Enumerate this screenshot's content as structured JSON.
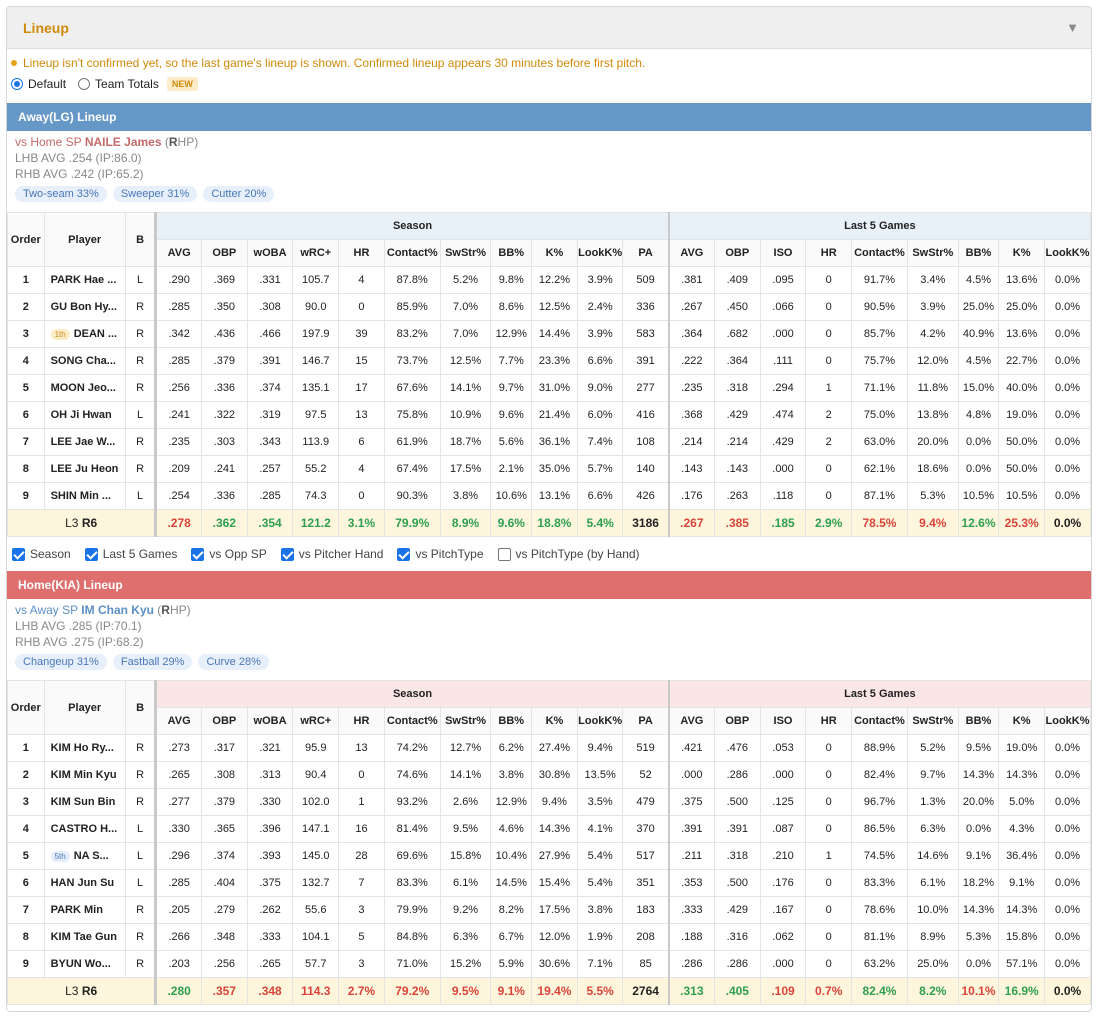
{
  "panel": {
    "title": "Lineup",
    "caret": "▼"
  },
  "notice": "Lineup isn't confirmed yet, so the last game's lineup is shown. Confirmed lineup appears 30 minutes before first pitch.",
  "view_options": [
    {
      "label": "Default",
      "selected": true
    },
    {
      "label": "Team Totals",
      "selected": false,
      "badge": "NEW"
    }
  ],
  "headers": {
    "order": "Order",
    "player": "Player",
    "b": "B",
    "season": "Season",
    "last5": "Last 5 Games",
    "season_cols": [
      "AVG",
      "OBP",
      "wOBA",
      "wRC+",
      "HR",
      "Contact%",
      "SwStr%",
      "BB%",
      "K%",
      "LookK%",
      "PA"
    ],
    "last5_cols": [
      "AVG",
      "OBP",
      "ISO",
      "HR",
      "Contact%",
      "SwStr%",
      "BB%",
      "K%",
      "LookK%"
    ]
  },
  "away": {
    "title": "Away(LG) Lineup",
    "sp_prefix": "vs Home SP",
    "sp_name": "NAILE James",
    "sp_hand_open": "(",
    "sp_hand_letter": "R",
    "sp_hand_rest": "HP)",
    "lhb": "LHB AVG .254 (IP:86.0)",
    "rhb": "RHB AVG .242 (IP:65.2)",
    "pitches": [
      "Two-seam 33%",
      "Sweeper 31%",
      "Cutter 20%"
    ],
    "rows": [
      {
        "order": "1",
        "badge": "",
        "player": "PARK Hae ...",
        "b": "L",
        "season": [
          ".290",
          ".369",
          ".331",
          "105.7",
          "4",
          "87.8%",
          "5.2%",
          "9.8%",
          "12.2%",
          "3.9%",
          "509"
        ],
        "last5": [
          ".381",
          ".409",
          ".095",
          "0",
          "91.7%",
          "3.4%",
          "4.5%",
          "13.6%",
          "0.0%"
        ]
      },
      {
        "order": "2",
        "badge": "",
        "player": "GU Bon Hy...",
        "b": "R",
        "season": [
          ".285",
          ".350",
          ".308",
          "90.0",
          "0",
          "85.9%",
          "7.0%",
          "8.6%",
          "12.5%",
          "2.4%",
          "336"
        ],
        "last5": [
          ".267",
          ".450",
          ".066",
          "0",
          "90.5%",
          "3.9%",
          "25.0%",
          "25.0%",
          "0.0%"
        ]
      },
      {
        "order": "3",
        "badge": "1th",
        "player": "DEAN ...",
        "b": "R",
        "season": [
          ".342",
          ".436",
          ".466",
          "197.9",
          "39",
          "83.2%",
          "7.0%",
          "12.9%",
          "14.4%",
          "3.9%",
          "583"
        ],
        "last5": [
          ".364",
          ".682",
          ".000",
          "0",
          "85.7%",
          "4.2%",
          "40.9%",
          "13.6%",
          "0.0%"
        ]
      },
      {
        "order": "4",
        "badge": "",
        "player": "SONG Cha...",
        "b": "R",
        "season": [
          ".285",
          ".379",
          ".391",
          "146.7",
          "15",
          "73.7%",
          "12.5%",
          "7.7%",
          "23.3%",
          "6.6%",
          "391"
        ],
        "last5": [
          ".222",
          ".364",
          ".111",
          "0",
          "75.7%",
          "12.0%",
          "4.5%",
          "22.7%",
          "0.0%"
        ]
      },
      {
        "order": "5",
        "badge": "",
        "player": "MOON Jeo...",
        "b": "R",
        "season": [
          ".256",
          ".336",
          ".374",
          "135.1",
          "17",
          "67.6%",
          "14.1%",
          "9.7%",
          "31.0%",
          "9.0%",
          "277"
        ],
        "last5": [
          ".235",
          ".318",
          ".294",
          "1",
          "71.1%",
          "11.8%",
          "15.0%",
          "40.0%",
          "0.0%"
        ]
      },
      {
        "order": "6",
        "badge": "",
        "player": "OH Ji Hwan",
        "b": "L",
        "season": [
          ".241",
          ".322",
          ".319",
          "97.5",
          "13",
          "75.8%",
          "10.9%",
          "9.6%",
          "21.4%",
          "6.0%",
          "416"
        ],
        "last5": [
          ".368",
          ".429",
          ".474",
          "2",
          "75.0%",
          "13.8%",
          "4.8%",
          "19.0%",
          "0.0%"
        ]
      },
      {
        "order": "7",
        "badge": "",
        "player": "LEE Jae W...",
        "b": "R",
        "season": [
          ".235",
          ".303",
          ".343",
          "113.9",
          "6",
          "61.9%",
          "18.7%",
          "5.6%",
          "36.1%",
          "7.4%",
          "108"
        ],
        "last5": [
          ".214",
          ".214",
          ".429",
          "2",
          "63.0%",
          "20.0%",
          "0.0%",
          "50.0%",
          "0.0%"
        ]
      },
      {
        "order": "8",
        "badge": "",
        "player": "LEE Ju Heon",
        "b": "R",
        "season": [
          ".209",
          ".241",
          ".257",
          "55.2",
          "4",
          "67.4%",
          "17.5%",
          "2.1%",
          "35.0%",
          "5.7%",
          "140"
        ],
        "last5": [
          ".143",
          ".143",
          ".000",
          "0",
          "62.1%",
          "18.6%",
          "0.0%",
          "50.0%",
          "0.0%"
        ]
      },
      {
        "order": "9",
        "badge": "",
        "player": "SHIN Min ...",
        "b": "L",
        "season": [
          ".254",
          ".336",
          ".285",
          "74.3",
          "0",
          "90.3%",
          "3.8%",
          "10.6%",
          "13.1%",
          "6.6%",
          "426"
        ],
        "last5": [
          ".176",
          ".263",
          ".118",
          "0",
          "87.1%",
          "5.3%",
          "10.5%",
          "10.5%",
          "0.0%"
        ]
      }
    ],
    "total": {
      "label_l": "L3",
      "label_r": "R6",
      "season": [
        {
          "v": ".278",
          "c": "cr"
        },
        {
          "v": ".362",
          "c": "cg"
        },
        {
          "v": ".354",
          "c": "cg"
        },
        {
          "v": "121.2",
          "c": "cg"
        },
        {
          "v": "3.1%",
          "c": "cg"
        },
        {
          "v": "79.9%",
          "c": "cg"
        },
        {
          "v": "8.9%",
          "c": "cg"
        },
        {
          "v": "9.6%",
          "c": "cg"
        },
        {
          "v": "18.8%",
          "c": "cg"
        },
        {
          "v": "5.4%",
          "c": "cg"
        },
        {
          "v": "3186",
          "c": "cb"
        }
      ],
      "last5": [
        {
          "v": ".267",
          "c": "cr"
        },
        {
          "v": ".385",
          "c": "cr"
        },
        {
          "v": ".185",
          "c": "cg"
        },
        {
          "v": "2.9%",
          "c": "cg"
        },
        {
          "v": "78.5%",
          "c": "cr"
        },
        {
          "v": "9.4%",
          "c": "cr"
        },
        {
          "v": "12.6%",
          "c": "cg"
        },
        {
          "v": "25.3%",
          "c": "cr"
        },
        {
          "v": "0.0%",
          "c": "cb"
        }
      ]
    }
  },
  "filters": [
    {
      "label": "Season",
      "checked": true
    },
    {
      "label": "Last 5 Games",
      "checked": true
    },
    {
      "label": "vs Opp SP",
      "checked": true
    },
    {
      "label": "vs Pitcher Hand",
      "checked": true
    },
    {
      "label": "vs PitchType",
      "checked": true
    },
    {
      "label": "vs PitchType (by Hand)",
      "checked": false
    }
  ],
  "home": {
    "title": "Home(KIA) Lineup",
    "sp_prefix": "vs Away SP",
    "sp_name": "IM Chan Kyu",
    "sp_hand_open": "(",
    "sp_hand_letter": "R",
    "sp_hand_rest": "HP)",
    "lhb": "LHB AVG .285 (IP:70.1)",
    "rhb": "RHB AVG .275 (IP:68.2)",
    "pitches": [
      "Changeup 31%",
      "Fastball 29%",
      "Curve 28%"
    ],
    "rows": [
      {
        "order": "1",
        "badge": "",
        "player": "KIM Ho Ry...",
        "b": "R",
        "season": [
          ".273",
          ".317",
          ".321",
          "95.9",
          "13",
          "74.2%",
          "12.7%",
          "6.2%",
          "27.4%",
          "9.4%",
          "519"
        ],
        "last5": [
          ".421",
          ".476",
          ".053",
          "0",
          "88.9%",
          "5.2%",
          "9.5%",
          "19.0%",
          "0.0%"
        ]
      },
      {
        "order": "2",
        "badge": "",
        "player": "KIM Min Kyu",
        "b": "R",
        "season": [
          ".265",
          ".308",
          ".313",
          "90.4",
          "0",
          "74.6%",
          "14.1%",
          "3.8%",
          "30.8%",
          "13.5%",
          "52"
        ],
        "last5": [
          ".000",
          ".286",
          ".000",
          "0",
          "82.4%",
          "9.7%",
          "14.3%",
          "14.3%",
          "0.0%"
        ]
      },
      {
        "order": "3",
        "badge": "",
        "player": "KIM Sun Bin",
        "b": "R",
        "season": [
          ".277",
          ".379",
          ".330",
          "102.0",
          "1",
          "93.2%",
          "2.6%",
          "12.9%",
          "9.4%",
          "3.5%",
          "479"
        ],
        "last5": [
          ".375",
          ".500",
          ".125",
          "0",
          "96.7%",
          "1.3%",
          "20.0%",
          "5.0%",
          "0.0%"
        ]
      },
      {
        "order": "4",
        "badge": "",
        "player": "CASTRO H...",
        "b": "L",
        "season": [
          ".330",
          ".365",
          ".396",
          "147.1",
          "16",
          "81.4%",
          "9.5%",
          "4.6%",
          "14.3%",
          "4.1%",
          "370"
        ],
        "last5": [
          ".391",
          ".391",
          ".087",
          "0",
          "86.5%",
          "6.3%",
          "0.0%",
          "4.3%",
          "0.0%"
        ]
      },
      {
        "order": "5",
        "badge": "5th",
        "player": "NA S...",
        "b": "L",
        "season": [
          ".296",
          ".374",
          ".393",
          "145.0",
          "28",
          "69.6%",
          "15.8%",
          "10.4%",
          "27.9%",
          "5.4%",
          "517"
        ],
        "last5": [
          ".211",
          ".318",
          ".210",
          "1",
          "74.5%",
          "14.6%",
          "9.1%",
          "36.4%",
          "0.0%"
        ]
      },
      {
        "order": "6",
        "badge": "",
        "player": "HAN Jun Su",
        "b": "L",
        "season": [
          ".285",
          ".404",
          ".375",
          "132.7",
          "7",
          "83.3%",
          "6.1%",
          "14.5%",
          "15.4%",
          "5.4%",
          "351"
        ],
        "last5": [
          ".353",
          ".500",
          ".176",
          "0",
          "83.3%",
          "6.1%",
          "18.2%",
          "9.1%",
          "0.0%"
        ]
      },
      {
        "order": "7",
        "badge": "",
        "player": "PARK Min",
        "b": "R",
        "season": [
          ".205",
          ".279",
          ".262",
          "55.6",
          "3",
          "79.9%",
          "9.2%",
          "8.2%",
          "17.5%",
          "3.8%",
          "183"
        ],
        "last5": [
          ".333",
          ".429",
          ".167",
          "0",
          "78.6%",
          "10.0%",
          "14.3%",
          "14.3%",
          "0.0%"
        ]
      },
      {
        "order": "8",
        "badge": "",
        "player": "KIM Tae Gun",
        "b": "R",
        "season": [
          ".266",
          ".348",
          ".333",
          "104.1",
          "5",
          "84.8%",
          "6.3%",
          "6.7%",
          "12.0%",
          "1.9%",
          "208"
        ],
        "last5": [
          ".188",
          ".316",
          ".062",
          "0",
          "81.1%",
          "8.9%",
          "5.3%",
          "15.8%",
          "0.0%"
        ]
      },
      {
        "order": "9",
        "badge": "",
        "player": "BYUN Wo...",
        "b": "R",
        "season": [
          ".203",
          ".256",
          ".265",
          "57.7",
          "3",
          "71.0%",
          "15.2%",
          "5.9%",
          "30.6%",
          "7.1%",
          "85"
        ],
        "last5": [
          ".286",
          ".286",
          ".000",
          "0",
          "63.2%",
          "25.0%",
          "0.0%",
          "57.1%",
          "0.0%"
        ]
      }
    ],
    "total": {
      "label_l": "L3",
      "label_r": "R6",
      "season": [
        {
          "v": ".280",
          "c": "cg"
        },
        {
          "v": ".357",
          "c": "cr"
        },
        {
          "v": ".348",
          "c": "cr"
        },
        {
          "v": "114.3",
          "c": "cr"
        },
        {
          "v": "2.7%",
          "c": "cr"
        },
        {
          "v": "79.2%",
          "c": "cr"
        },
        {
          "v": "9.5%",
          "c": "cr"
        },
        {
          "v": "9.1%",
          "c": "cr"
        },
        {
          "v": "19.4%",
          "c": "cr"
        },
        {
          "v": "5.5%",
          "c": "cr"
        },
        {
          "v": "2764",
          "c": "cb"
        }
      ],
      "last5": [
        {
          "v": ".313",
          "c": "cg"
        },
        {
          "v": ".405",
          "c": "cg"
        },
        {
          "v": ".109",
          "c": "cr"
        },
        {
          "v": "0.7%",
          "c": "cr"
        },
        {
          "v": "82.4%",
          "c": "cg"
        },
        {
          "v": "8.2%",
          "c": "cg"
        },
        {
          "v": "10.1%",
          "c": "cr"
        },
        {
          "v": "16.9%",
          "c": "cg"
        },
        {
          "v": "0.0%",
          "c": "cb"
        }
      ]
    }
  }
}
